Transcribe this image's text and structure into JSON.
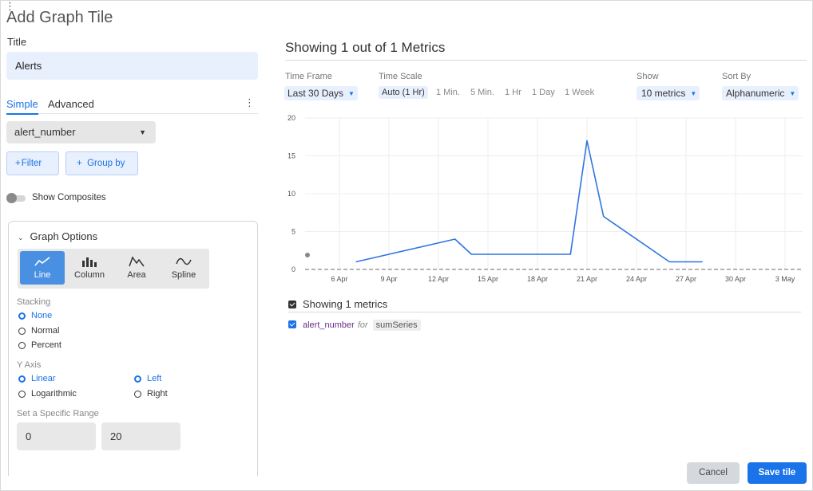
{
  "dialog": {
    "title": "Add Graph Tile"
  },
  "left": {
    "title_label": "Title",
    "title_value": "Alerts",
    "tabs": [
      {
        "label": "Simple",
        "active": true
      },
      {
        "label": "Advanced",
        "active": false
      }
    ],
    "metric": "alert_number",
    "filter_label": "Filter",
    "group_by_label": "Group by",
    "show_composites_label": "Show Composites",
    "show_composites_on": false,
    "graph_options": {
      "heading": "Graph Options",
      "types": [
        {
          "label": "Line",
          "icon": "line-chart-icon",
          "active": true
        },
        {
          "label": "Column",
          "icon": "column-chart-icon",
          "active": false
        },
        {
          "label": "Area",
          "icon": "area-chart-icon",
          "active": false
        },
        {
          "label": "Spline",
          "icon": "spline-chart-icon",
          "active": false
        }
      ],
      "stacking_label": "Stacking",
      "stacking_options": [
        "None",
        "Normal",
        "Percent"
      ],
      "stacking_selected": "None",
      "y_axis_label": "Y Axis",
      "scale_options": [
        "Linear",
        "Logarithmic"
      ],
      "scale_selected": "Linear",
      "side_options": [
        "Left",
        "Right"
      ],
      "side_selected": "Left",
      "range_label": "Set a Specific Range",
      "range_min": "0",
      "range_max": "20"
    }
  },
  "right": {
    "title": "Showing 1 out of 1 Metrics",
    "time_frame_label": "Time Frame",
    "time_frame_value": "Last 30 Days",
    "time_scale_label": "Time Scale",
    "time_scale_options": [
      "Auto (1 Hr)",
      "1 Min.",
      "5 Min.",
      "1 Hr",
      "1 Day",
      "1 Week"
    ],
    "time_scale_selected": "Auto (1 Hr)",
    "show_label": "Show",
    "show_value": "10 metrics",
    "sort_label": "Sort By",
    "sort_value": "Alphanumeric",
    "legend_heading": "Showing 1 metrics",
    "legend_metric": "alert_number",
    "legend_for": "for",
    "legend_fn": "sumSeries"
  },
  "footer": {
    "cancel_label": "Cancel",
    "save_label": "Save tile"
  },
  "colors": {
    "accent": "#1a73e8",
    "series": "#2f74e3",
    "metric_name": "#6a2c8a"
  },
  "chart_data": {
    "type": "line",
    "ylim": [
      0,
      20
    ],
    "y_ticks": [
      0,
      5,
      10,
      15,
      20
    ],
    "x_ticks": [
      "6 Apr",
      "9 Apr",
      "12 Apr",
      "15 Apr",
      "18 Apr",
      "21 Apr",
      "24 Apr",
      "27 Apr",
      "30 Apr",
      "3 May"
    ],
    "baseline": 0,
    "series": [
      {
        "name": "alert_number",
        "points": [
          {
            "x": "2024-04-07",
            "y": 1
          },
          {
            "x": "2024-04-13",
            "y": 4
          },
          {
            "x": "2024-04-14",
            "y": 2
          },
          {
            "x": "2024-04-20",
            "y": 2
          },
          {
            "x": "2024-04-21",
            "y": 17
          },
          {
            "x": "2024-04-22",
            "y": 7
          },
          {
            "x": "2024-04-26",
            "y": 1
          },
          {
            "x": "2024-04-28",
            "y": 1
          }
        ]
      }
    ]
  }
}
